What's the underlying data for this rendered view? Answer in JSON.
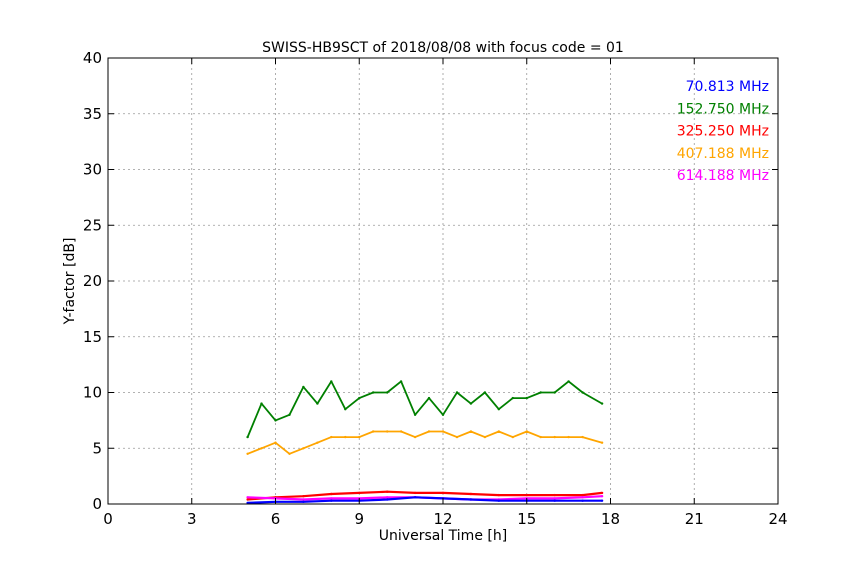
{
  "chart_data": {
    "type": "line",
    "title": "SWISS-HB9SCT of 2018/08/08 with focus code = 01",
    "xlabel": "Universal Time [h]",
    "ylabel": "Y-factor [dB]",
    "xlim": [
      0,
      24
    ],
    "ylim": [
      0,
      40
    ],
    "xticks": [
      0,
      3,
      6,
      9,
      12,
      15,
      18,
      21,
      24
    ],
    "yticks": [
      0,
      5,
      10,
      15,
      20,
      25,
      30,
      35,
      40
    ],
    "grid": true,
    "legend_position": "top-right",
    "x_range_of_data": [
      5.0,
      17.7
    ],
    "series": [
      {
        "name": "70.813 MHz",
        "color": "#0000ff",
        "x": [
          5.0,
          6.0,
          7.0,
          8.0,
          9.0,
          10.0,
          11.0,
          12.0,
          13.0,
          14.0,
          15.0,
          16.0,
          17.0,
          17.7
        ],
        "y": [
          0.1,
          0.2,
          0.2,
          0.3,
          0.3,
          0.4,
          0.6,
          0.5,
          0.4,
          0.3,
          0.3,
          0.3,
          0.3,
          0.3
        ]
      },
      {
        "name": "152.750 MHz",
        "color": "#008000",
        "x": [
          5.0,
          5.5,
          6.0,
          6.5,
          7.0,
          7.5,
          8.0,
          8.5,
          9.0,
          9.5,
          10.0,
          10.5,
          11.0,
          11.5,
          12.0,
          12.5,
          13.0,
          13.5,
          14.0,
          14.5,
          15.0,
          15.5,
          16.0,
          16.5,
          17.0,
          17.7
        ],
        "y": [
          6.0,
          9.0,
          7.5,
          8.0,
          10.5,
          9.0,
          11.0,
          8.5,
          9.5,
          10.0,
          10.0,
          11.0,
          8.0,
          9.5,
          8.0,
          10.0,
          9.0,
          10.0,
          8.5,
          9.5,
          9.5,
          10.0,
          10.0,
          11.0,
          10.0,
          9.0
        ]
      },
      {
        "name": "325.250 MHz",
        "color": "#ff0000",
        "x": [
          5.0,
          6.0,
          7.0,
          8.0,
          9.0,
          10.0,
          11.0,
          12.0,
          13.0,
          14.0,
          15.0,
          16.0,
          17.0,
          17.7
        ],
        "y": [
          0.4,
          0.6,
          0.7,
          0.9,
          1.0,
          1.1,
          1.0,
          1.0,
          0.9,
          0.8,
          0.8,
          0.8,
          0.8,
          1.0
        ]
      },
      {
        "name": "407.188 MHz",
        "color": "#ffa500",
        "x": [
          5.0,
          5.5,
          6.0,
          6.5,
          7.0,
          7.5,
          8.0,
          8.5,
          9.0,
          9.5,
          10.0,
          10.5,
          11.0,
          11.5,
          12.0,
          12.5,
          13.0,
          13.5,
          14.0,
          14.5,
          15.0,
          15.5,
          16.0,
          16.5,
          17.0,
          17.7
        ],
        "y": [
          4.5,
          5.0,
          5.5,
          4.5,
          5.0,
          5.5,
          6.0,
          6.0,
          6.0,
          6.5,
          6.5,
          6.5,
          6.0,
          6.5,
          6.5,
          6.0,
          6.5,
          6.0,
          6.5,
          6.0,
          6.5,
          6.0,
          6.0,
          6.0,
          6.0,
          5.5
        ]
      },
      {
        "name": "614.188 MHz",
        "color": "#ff00ff",
        "x": [
          5.0,
          6.0,
          7.0,
          8.0,
          9.0,
          10.0,
          11.0,
          12.0,
          13.0,
          14.0,
          15.0,
          16.0,
          17.0,
          17.7
        ],
        "y": [
          0.6,
          0.5,
          0.4,
          0.5,
          0.5,
          0.6,
          0.6,
          0.5,
          0.4,
          0.4,
          0.5,
          0.5,
          0.6,
          0.7
        ]
      }
    ]
  }
}
